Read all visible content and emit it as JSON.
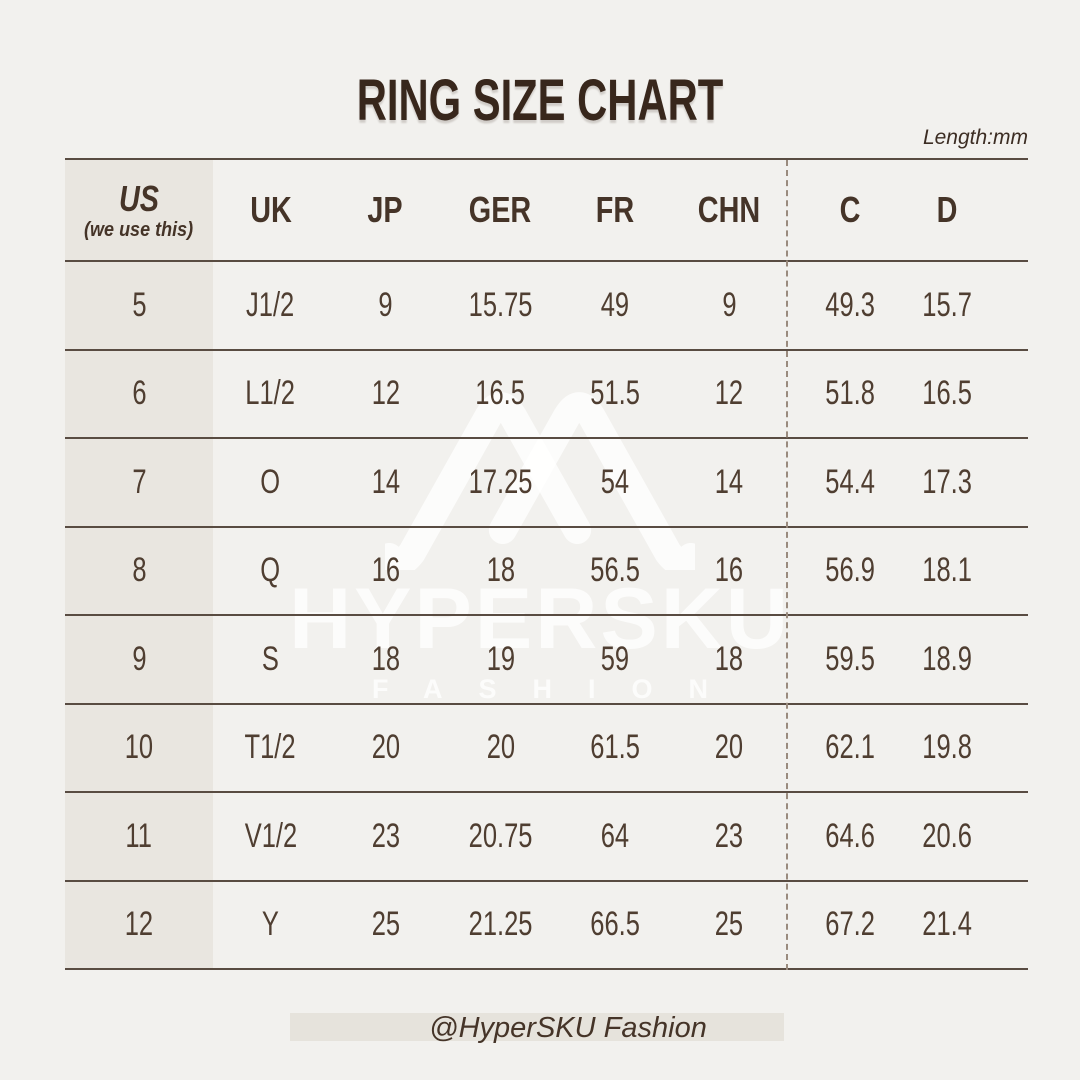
{
  "title": "RING SIZE CHART",
  "unit_note": "Length:mm",
  "watermark": {
    "logo_icon": "double-peak-monogram-icon",
    "brand": "HYPERSKU",
    "sub_brand": "FASHION"
  },
  "footer": {
    "handle": "@HyperSKU Fashion"
  },
  "colors": {
    "background": "#f2f1ee",
    "first_column_fill": "#e9e6e0",
    "rule_line": "#594c42",
    "dashed_divider": "#9a8b7e",
    "text": "#4f3e31",
    "title_text": "#38271c",
    "footer_bar": "#e6e3dc",
    "watermark": "#ffffff"
  },
  "chart_data": {
    "type": "table",
    "title": "RING SIZE CHART",
    "unit": "mm",
    "us_note": "(we use this)",
    "columns": [
      "US",
      "UK",
      "JP",
      "GER",
      "FR",
      "CHN",
      "C",
      "D"
    ],
    "rows": [
      [
        "5",
        "J1/2",
        "9",
        "15.75",
        "49",
        "9",
        "49.3",
        "15.7"
      ],
      [
        "6",
        "L1/2",
        "12",
        "16.5",
        "51.5",
        "12",
        "51.8",
        "16.5"
      ],
      [
        "7",
        "O",
        "14",
        "17.25",
        "54",
        "14",
        "54.4",
        "17.3"
      ],
      [
        "8",
        "Q",
        "16",
        "18",
        "56.5",
        "16",
        "56.9",
        "18.1"
      ],
      [
        "9",
        "S",
        "18",
        "19",
        "59",
        "18",
        "59.5",
        "18.9"
      ],
      [
        "10",
        "T1/2",
        "20",
        "20",
        "61.5",
        "20",
        "62.1",
        "19.8"
      ],
      [
        "11",
        "V1/2",
        "23",
        "20.75",
        "64",
        "23",
        "64.6",
        "20.6"
      ],
      [
        "12",
        "Y",
        "25",
        "21.25",
        "66.5",
        "25",
        "67.2",
        "21.4"
      ]
    ]
  }
}
